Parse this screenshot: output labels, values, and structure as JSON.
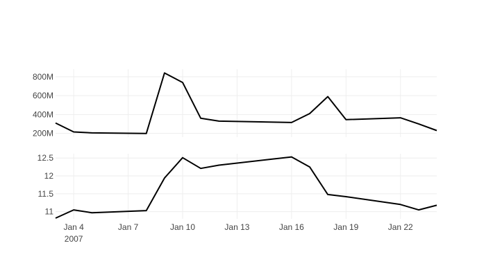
{
  "chart_data": [
    {
      "type": "line",
      "x": [
        "2007-01-03",
        "2007-01-04",
        "2007-01-05",
        "2007-01-08",
        "2007-01-09",
        "2007-01-10",
        "2007-01-11",
        "2007-01-12",
        "2007-01-16",
        "2007-01-17",
        "2007-01-18",
        "2007-01-19",
        "2007-01-22",
        "2007-01-23",
        "2007-01-24"
      ],
      "values": [
        310000000,
        215000000,
        205000000,
        198000000,
        840000000,
        740000000,
        360000000,
        330000000,
        315000000,
        410000000,
        590000000,
        345000000,
        365000000,
        300000000,
        230000000
      ],
      "xlim": [
        "2007-01-03",
        "2007-01-24"
      ],
      "ylim": [
        160000000,
        880000000
      ],
      "y_ticks": [
        {
          "value": 200000000,
          "label": "200M"
        },
        {
          "value": 400000000,
          "label": "400M"
        },
        {
          "value": 600000000,
          "label": "600M"
        },
        {
          "value": 800000000,
          "label": "800M"
        }
      ],
      "line_color": "#000000",
      "grid": true
    },
    {
      "type": "line",
      "x": [
        "2007-01-03",
        "2007-01-04",
        "2007-01-05",
        "2007-01-08",
        "2007-01-09",
        "2007-01-10",
        "2007-01-11",
        "2007-01-12",
        "2007-01-16",
        "2007-01-17",
        "2007-01-18",
        "2007-01-19",
        "2007-01-22",
        "2007-01-23",
        "2007-01-24"
      ],
      "values": [
        10.82,
        11.05,
        10.97,
        11.03,
        11.94,
        12.51,
        12.21,
        12.3,
        12.53,
        12.25,
        11.48,
        11.42,
        11.2,
        11.05,
        11.18
      ],
      "xlim": [
        "2007-01-03",
        "2007-01-24"
      ],
      "ylim": [
        10.8,
        12.62
      ],
      "y_ticks": [
        {
          "value": 11,
          "label": "11"
        },
        {
          "value": 11.5,
          "label": "11.5"
        },
        {
          "value": 12,
          "label": "12"
        },
        {
          "value": 12.5,
          "label": "12.5"
        }
      ],
      "x_ticks": [
        {
          "value": "2007-01-04",
          "label": "Jan 4",
          "sublabel": "2007"
        },
        {
          "value": "2007-01-07",
          "label": "Jan 7"
        },
        {
          "value": "2007-01-10",
          "label": "Jan 10"
        },
        {
          "value": "2007-01-13",
          "label": "Jan 13"
        },
        {
          "value": "2007-01-16",
          "label": "Jan 16"
        },
        {
          "value": "2007-01-19",
          "label": "Jan 19"
        },
        {
          "value": "2007-01-22",
          "label": "Jan 22"
        }
      ],
      "line_color": "#000000",
      "grid": true
    }
  ]
}
